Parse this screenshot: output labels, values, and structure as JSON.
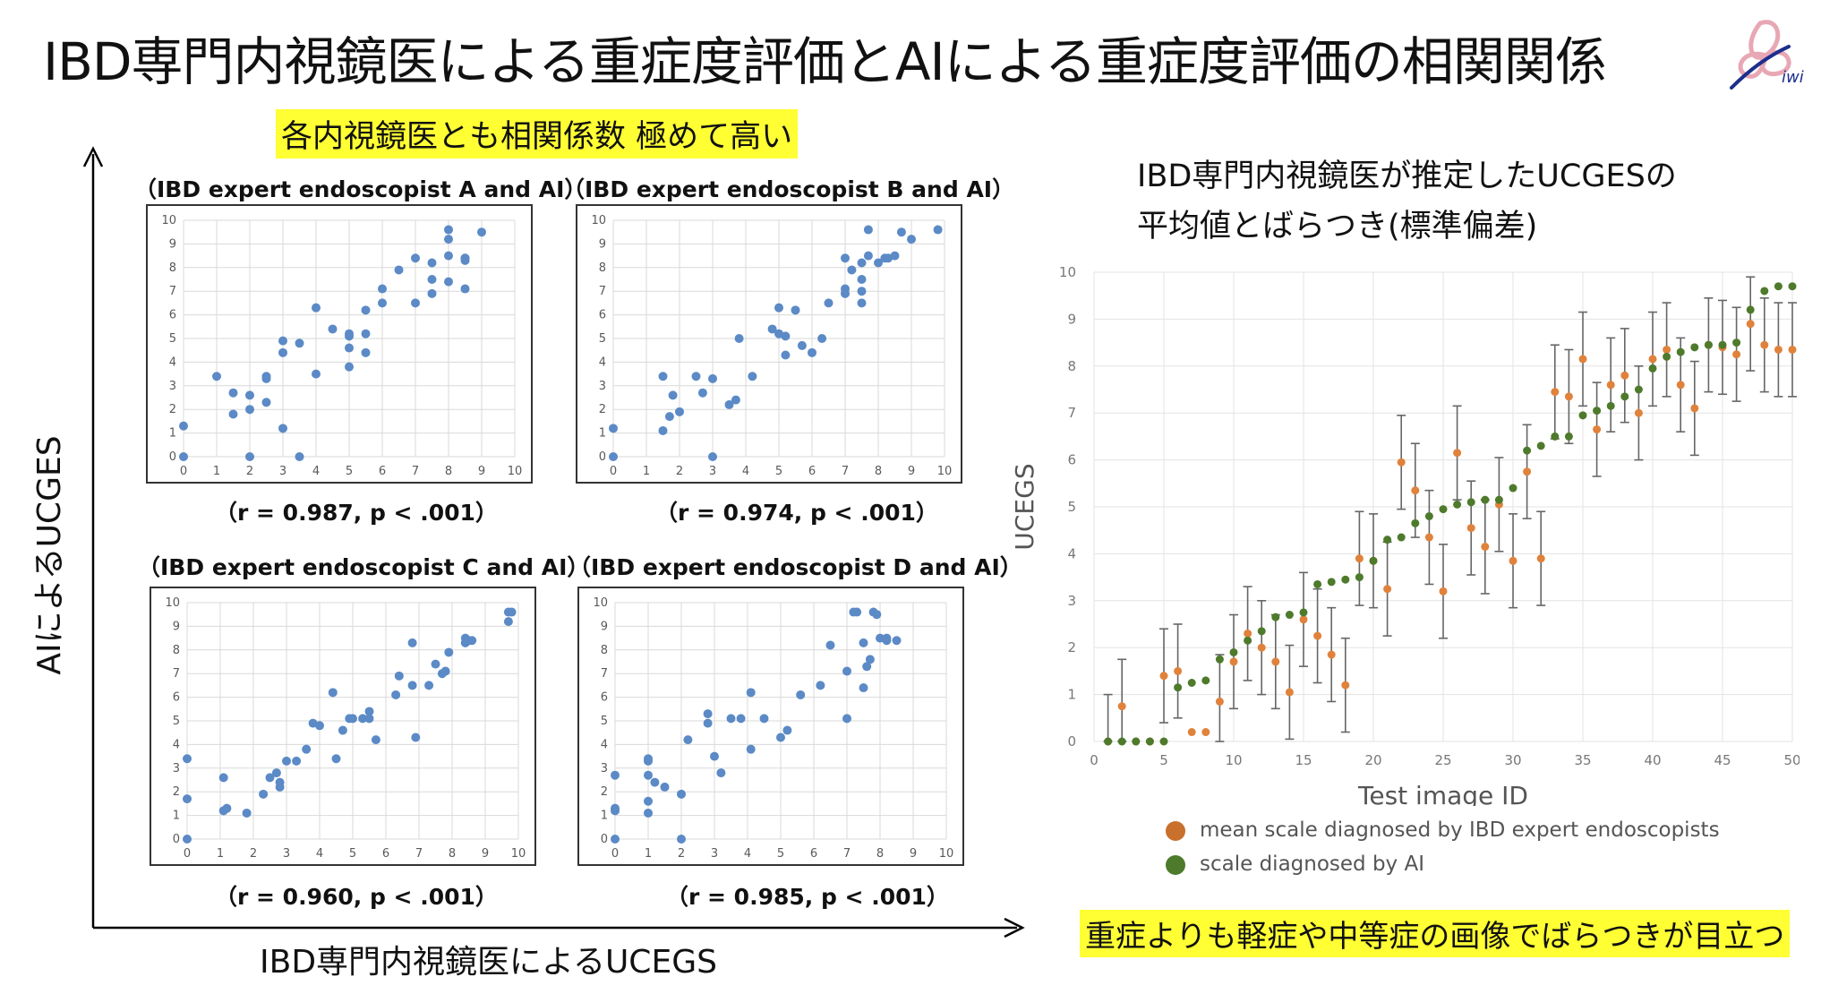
{
  "title": "IBD専門内視鏡医による重症度評価とAIによる重症度評価の相関関係",
  "logo_text": "iwi",
  "left_highlight": "各内視鏡医とも相関係数 極めて高い",
  "y_axis_label": "AIによるUCGES",
  "x_axis_label": "IBD専門内視鏡医によるUCEGS",
  "right_title": [
    "IBD専門内視鏡医が推定したUCGESの",
    "平均値とばらつき(標準偏差)"
  ],
  "right_highlight": "重症よりも軽症や中等症の画像でばらつきが目立つ",
  "colors": {
    "scatter_point": "#5b8ac6",
    "mean_point": "#e0823c",
    "ai_point": "#4e7a2c",
    "highlight": "#ffff33"
  },
  "chart_data": [
    {
      "type": "scatter",
      "title": "（IBD expert endoscopist A and AI）",
      "stat": "（r = 0.987, p < .001）",
      "xlim": [
        0,
        10
      ],
      "ylim": [
        0,
        10
      ],
      "ticks": [
        "0",
        "1",
        "2",
        "3",
        "4",
        "5",
        "6",
        "7",
        "8",
        "9",
        "10"
      ],
      "x": [
        0,
        0,
        1,
        1.5,
        1.5,
        2,
        2,
        2,
        2.5,
        2.5,
        2.5,
        3,
        3,
        3,
        3.5,
        3.5,
        4,
        4,
        4.5,
        5,
        5,
        5,
        5,
        5.5,
        5.5,
        5.5,
        6,
        6,
        6.5,
        7,
        7,
        7.5,
        7.5,
        7.5,
        8,
        8,
        8,
        8,
        8.5,
        8.5,
        8.5,
        8.5,
        9
      ],
      "y": [
        1.3,
        0,
        3.4,
        2.7,
        1.8,
        0,
        2.6,
        2,
        2.3,
        3.4,
        3.3,
        1.2,
        4.4,
        4.9,
        4.8,
        0,
        3.5,
        6.3,
        5.4,
        4.6,
        5.1,
        5.2,
        3.8,
        5.2,
        6.2,
        4.4,
        7.1,
        6.5,
        7.9,
        6.5,
        8.4,
        7.5,
        8.2,
        6.9,
        9.6,
        9.2,
        7.4,
        8.5,
        8.4,
        8.3,
        7.1,
        8.4,
        9.5
      ]
    },
    {
      "type": "scatter",
      "title": "（IBD expert endoscopist B and AI）",
      "stat": "（r = 0.974, p < .001）",
      "xlim": [
        0,
        10
      ],
      "ylim": [
        0,
        10
      ],
      "ticks": [
        "0",
        "1",
        "2",
        "3",
        "4",
        "5",
        "6",
        "7",
        "8",
        "9",
        "10"
      ],
      "x": [
        0,
        0,
        1.5,
        1.5,
        1.7,
        1.8,
        2,
        2.5,
        2.7,
        3,
        3,
        3.5,
        3.7,
        3.8,
        4.2,
        4.8,
        5,
        5,
        5.2,
        5.2,
        5.5,
        5.7,
        6,
        6.3,
        6.5,
        7,
        7,
        7,
        7.2,
        7.5,
        7.5,
        7.5,
        7.5,
        7.7,
        7.7,
        8,
        8.2,
        8.3,
        8.5,
        8.7,
        9,
        9.8
      ],
      "y": [
        1.2,
        0,
        1.1,
        3.4,
        1.7,
        2.6,
        1.9,
        3.4,
        2.7,
        0,
        3.3,
        2.2,
        2.4,
        5,
        3.4,
        5.4,
        6.3,
        5.2,
        4.3,
        5.1,
        6.2,
        4.7,
        4.4,
        5,
        6.5,
        7.1,
        8.4,
        6.9,
        7.9,
        7.5,
        8.2,
        7,
        6.5,
        8.5,
        9.6,
        8.2,
        8.4,
        8.4,
        8.5,
        9.5,
        9.2,
        9.6
      ]
    },
    {
      "type": "scatter",
      "title": "（IBD expert endoscopist C and AI）",
      "stat": "（r = 0.960, p < .001）",
      "xlim": [
        0,
        10
      ],
      "ylim": [
        0,
        10
      ],
      "ticks": [
        "0",
        "1",
        "2",
        "3",
        "4",
        "5",
        "6",
        "7",
        "8",
        "9",
        "10"
      ],
      "x": [
        0,
        0,
        0,
        1.1,
        1.1,
        1.2,
        1.8,
        2.3,
        2.5,
        2.7,
        2.8,
        2.8,
        3,
        3.3,
        3.6,
        3.8,
        4,
        4.4,
        4.5,
        4.7,
        4.9,
        5,
        5.3,
        5.5,
        5.5,
        5.7,
        6.3,
        6.4,
        6.8,
        6.8,
        6.9,
        7.3,
        7.5,
        7.7,
        7.8,
        7.9,
        8.4,
        8.4,
        8.5,
        8.6,
        9.7,
        9.7,
        9.8
      ],
      "y": [
        3.4,
        1.7,
        0,
        2.6,
        1.2,
        1.3,
        1.1,
        1.9,
        2.6,
        2.8,
        2.2,
        2.4,
        3.3,
        3.3,
        3.8,
        4.9,
        4.8,
        6.2,
        3.4,
        4.6,
        5.1,
        5.1,
        5.1,
        5.4,
        5.1,
        4.2,
        6.1,
        6.9,
        8.3,
        6.5,
        4.3,
        6.5,
        7.4,
        7,
        7.1,
        7.9,
        8.3,
        8.5,
        8.4,
        8.4,
        9.2,
        9.6,
        9.6
      ]
    },
    {
      "type": "scatter",
      "title": "（IBD expert endoscopist D and AI）",
      "stat": "（r = 0.985, p < .001）",
      "xlim": [
        0,
        10
      ],
      "ylim": [
        0,
        10
      ],
      "ticks": [
        "0",
        "1",
        "2",
        "3",
        "4",
        "5",
        "6",
        "7",
        "8",
        "9",
        "10"
      ],
      "x": [
        0,
        0,
        0,
        0,
        1,
        1,
        1,
        1,
        1,
        1.2,
        1.5,
        2,
        2,
        2.2,
        2.8,
        2.8,
        3,
        3.2,
        3.5,
        3.8,
        4.1,
        4.1,
        4.5,
        5,
        5.2,
        5.6,
        6.2,
        6.5,
        7,
        7,
        7.2,
        7.3,
        7.5,
        7.5,
        7.6,
        7.7,
        7.8,
        7.9,
        8,
        8.2,
        8.2,
        8.5
      ],
      "y": [
        1.3,
        1.2,
        2.7,
        0,
        3.4,
        3.3,
        2.7,
        1.6,
        1.1,
        2.4,
        2.2,
        1.9,
        0,
        4.2,
        5.3,
        4.9,
        3.5,
        2.8,
        5.1,
        5.1,
        6.2,
        3.8,
        5.1,
        4.3,
        4.6,
        6.1,
        6.5,
        8.2,
        7.1,
        5.1,
        9.6,
        9.6,
        6.4,
        8.3,
        7.3,
        7.6,
        9.6,
        9.5,
        8.5,
        8.4,
        8.5,
        8.4
      ]
    },
    {
      "type": "scatter",
      "xlabel": "Test image ID",
      "ylabel": "UCEGS",
      "xlim": [
        0,
        50
      ],
      "ylim": [
        0,
        10
      ],
      "xticks": [
        "0",
        "5",
        "10",
        "15",
        "20",
        "25",
        "30",
        "35",
        "40",
        "45",
        "50"
      ],
      "yticks": [
        "0",
        "1",
        "2",
        "3",
        "4",
        "5",
        "6",
        "7",
        "8",
        "9",
        "10"
      ],
      "series": [
        {
          "name": "mean scale diagnosed by IBD expert endoscopists",
          "x": [
            1,
            2,
            3,
            4,
            5,
            6,
            7,
            8,
            9,
            10,
            11,
            12,
            13,
            14,
            15,
            16,
            17,
            18,
            19,
            20,
            21,
            22,
            23,
            24,
            25,
            26,
            27,
            28,
            29,
            30,
            31,
            32,
            33,
            34,
            35,
            36,
            37,
            38,
            39,
            40,
            41,
            42,
            43,
            44,
            45,
            46,
            47,
            48,
            49,
            50
          ],
          "y": [
            0,
            0.75,
            0,
            0,
            1.4,
            1.5,
            0.2,
            0.2,
            0.85,
            1.7,
            2.3,
            2,
            1.7,
            1.05,
            2.6,
            2.25,
            1.85,
            1.2,
            3.9,
            3.85,
            3.25,
            5.95,
            5.35,
            4.35,
            3.2,
            6.15,
            4.55,
            4.15,
            5.05,
            3.85,
            5.75,
            3.9,
            7.45,
            7.35,
            8.15,
            6.65,
            7.6,
            7.8,
            7,
            8.15,
            8.35,
            7.6,
            7.1,
            8.45,
            8.4,
            8.25,
            8.9,
            8.45,
            8.35,
            8.35
          ],
          "sd": [
            1,
            1,
            0,
            0,
            1,
            1,
            0,
            0,
            1,
            1,
            1,
            1,
            1,
            1,
            1,
            1,
            1,
            1,
            1,
            1,
            1,
            1,
            1,
            1,
            1,
            1,
            1,
            1,
            1,
            1,
            1,
            1,
            1,
            1,
            1,
            1,
            1,
            1,
            1,
            1,
            1,
            1,
            1,
            1,
            1,
            1,
            1,
            1,
            1,
            1
          ]
        },
        {
          "name": "scale diagnosed by  AI",
          "x": [
            1,
            2,
            3,
            4,
            5,
            6,
            7,
            8,
            9,
            10,
            11,
            12,
            13,
            14,
            15,
            16,
            17,
            18,
            19,
            20,
            21,
            22,
            23,
            24,
            25,
            26,
            27,
            28,
            29,
            30,
            31,
            32,
            33,
            34,
            35,
            36,
            37,
            38,
            39,
            40,
            41,
            42,
            43,
            44,
            45,
            46,
            47,
            48,
            49,
            50
          ],
          "y": [
            0,
            0,
            0,
            0,
            0,
            1.15,
            1.25,
            1.3,
            1.75,
            1.9,
            2.15,
            2.35,
            2.65,
            2.7,
            2.75,
            3.35,
            3.4,
            3.45,
            3.5,
            3.85,
            4.3,
            4.35,
            4.65,
            4.8,
            4.95,
            5.05,
            5.1,
            5.15,
            5.15,
            5.4,
            6.2,
            6.3,
            6.5,
            6.5,
            6.95,
            7.05,
            7.15,
            7.35,
            7.5,
            7.95,
            8.2,
            8.3,
            8.4,
            8.45,
            8.45,
            8.5,
            9.2,
            9.6,
            9.7,
            9.7
          ]
        }
      ]
    }
  ]
}
